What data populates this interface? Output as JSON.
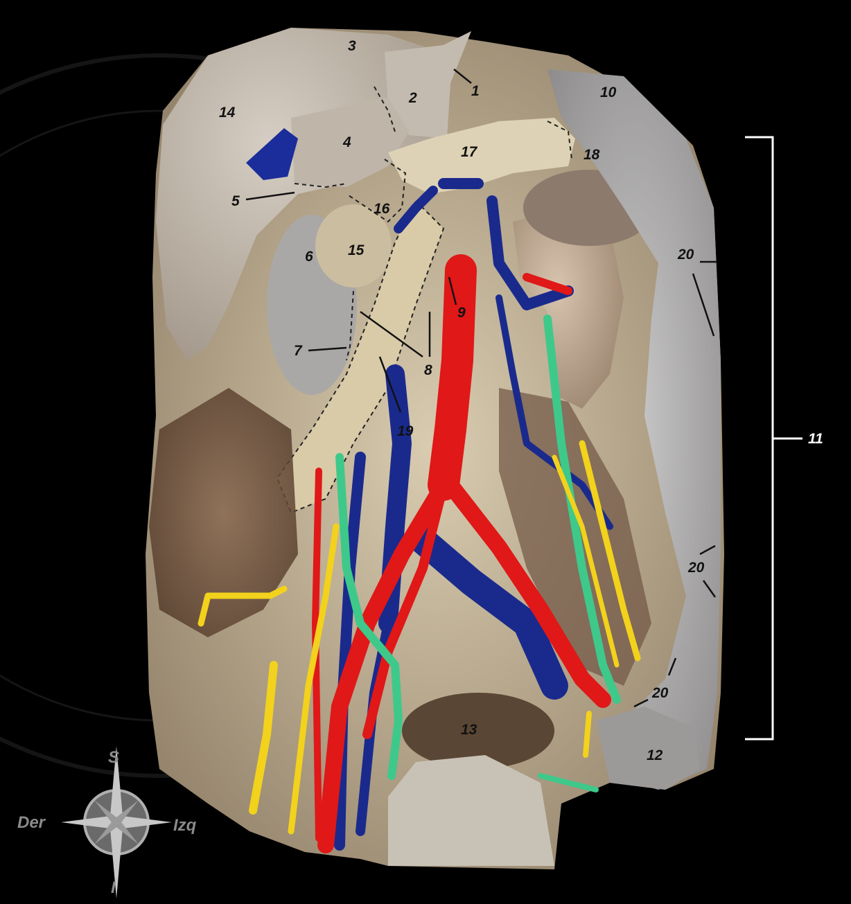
{
  "labels": {
    "l1": "1",
    "l2": "2",
    "l3": "3",
    "l4": "4",
    "l5": "5",
    "l6": "6",
    "l7": "7",
    "l8": "8",
    "l9": "9",
    "l10": "10",
    "l11": "11",
    "l12": "12",
    "l13": "13",
    "l14": "14",
    "l15": "15",
    "l16": "16",
    "l17": "17",
    "l18": "18",
    "l19": "19",
    "l20a": "20",
    "l20b": "20",
    "l20c": "20"
  },
  "compass": {
    "north": "S",
    "south": "I",
    "west": "Der",
    "east": "Izq"
  },
  "colors": {
    "background": "#000000",
    "tissue": "#d8cbb0",
    "liver": "#bdb3a6",
    "artery": "#e01818",
    "vein": "#1a2a8c",
    "nerve_yellow": "#f2d21c",
    "nerve_green": "#3ec98a",
    "label_text": "#111111",
    "bracket": "#ffffff"
  }
}
